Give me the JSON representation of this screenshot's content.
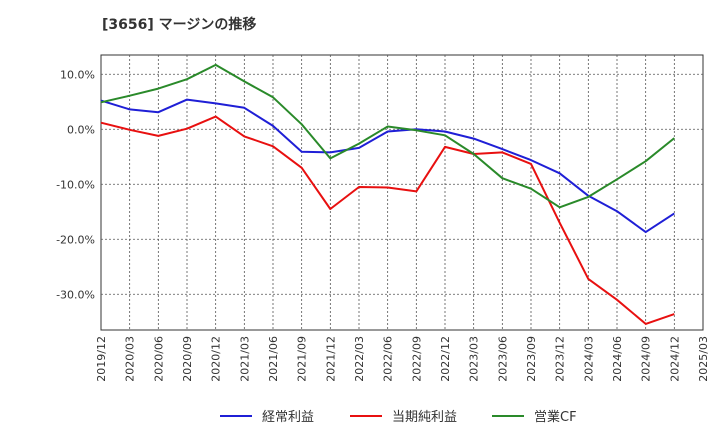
{
  "chart_data": {
    "type": "line",
    "title": "[3656]  マージンの推移",
    "xlabel": "",
    "ylabel": "",
    "x": [
      "2019/12",
      "2020/03",
      "2020/06",
      "2020/09",
      "2020/12",
      "2021/03",
      "2021/06",
      "2021/09",
      "2021/12",
      "2022/03",
      "2022/06",
      "2022/09",
      "2022/12",
      "2023/03",
      "2023/06",
      "2023/09",
      "2023/12",
      "2024/03",
      "2024/06",
      "2024/09",
      "2024/12",
      "2025/03"
    ],
    "ylim": [
      -36.5,
      13.5
    ],
    "yticks": [
      10,
      0,
      -10,
      -20,
      -30
    ],
    "ytick_labels": [
      "10.0%",
      "0.0%",
      "-10.0%",
      "-20.0%",
      "-30.0%"
    ],
    "grid": true,
    "legend": "bottom",
    "series": [
      {
        "name": "経常利益",
        "color": "#1f1fd6",
        "values": [
          5.2,
          3.6,
          3.1,
          5.4,
          4.7,
          3.9,
          0.6,
          -4.1,
          -4.2,
          -3.4,
          -0.4,
          0.0,
          -0.4,
          -1.7,
          -3.6,
          -5.6,
          -8.0,
          -12.1,
          -14.9,
          -18.7,
          -15.3,
          null
        ]
      },
      {
        "name": "当期純利益",
        "color": "#e81010",
        "values": [
          1.2,
          -0.1,
          -1.2,
          0.1,
          2.3,
          -1.3,
          -3.1,
          -7.0,
          -14.5,
          -10.5,
          -10.6,
          -11.3,
          -3.2,
          -4.5,
          -4.2,
          -6.3,
          -17.0,
          -27.2,
          -31.0,
          -35.4,
          -33.6,
          null
        ]
      },
      {
        "name": "営業CF",
        "color": "#2a8a2a",
        "values": [
          4.9,
          6.1,
          7.4,
          9.1,
          11.7,
          8.7,
          5.8,
          0.9,
          -5.3,
          -2.6,
          0.5,
          -0.2,
          -1.1,
          -4.5,
          -8.9,
          -10.8,
          -14.2,
          -12.3,
          -9.1,
          -5.8,
          -1.6,
          null
        ]
      }
    ]
  }
}
